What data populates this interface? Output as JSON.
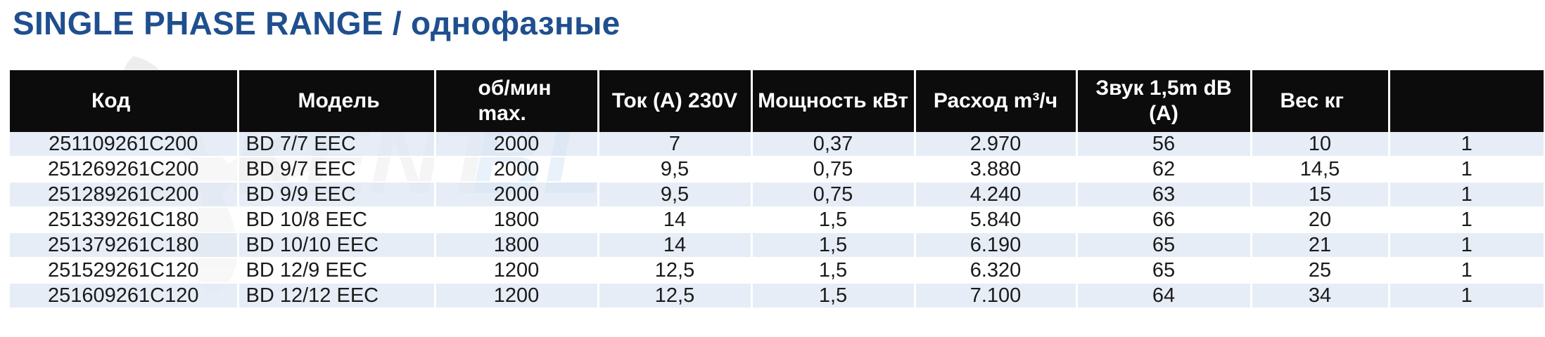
{
  "title": "SINGLE PHASE RANGE / однофазные",
  "watermark_text": "KENTBL",
  "colors": {
    "title": "#1f4f8e",
    "header_bg": "#0c0c0c",
    "row_stripe": "#e2eaf4",
    "watermark_blue": "#9ec3ea",
    "watermark_gray": "#c9c9c9"
  },
  "columns": [
    "Код",
    "Модель",
    "об/мин max.",
    "Ток (A) 230V",
    "Мощность кВт",
    "Расход m³/ч",
    "Звук 1,5m dB (A)",
    "Вес кг",
    ""
  ],
  "rows": [
    [
      "251109261C200",
      "BD 7/7 EEC",
      "2000",
      "7",
      "0,37",
      "2.970",
      "56",
      "10",
      "1"
    ],
    [
      "251269261C200",
      "BD 9/7 EEC",
      "2000",
      "9,5",
      "0,75",
      "3.880",
      "62",
      "14,5",
      "1"
    ],
    [
      "251289261C200",
      "BD 9/9 EEC",
      "2000",
      "9,5",
      "0,75",
      "4.240",
      "63",
      "15",
      "1"
    ],
    [
      "251339261C180",
      "BD 10/8 EEC",
      "1800",
      "14",
      "1,5",
      "5.840",
      "66",
      "20",
      "1"
    ],
    [
      "251379261C180",
      "BD 10/10 EEC",
      "1800",
      "14",
      "1,5",
      "6.190",
      "65",
      "21",
      "1"
    ],
    [
      "251529261C120",
      "BD 12/9 EEC",
      "1200",
      "12,5",
      "1,5",
      "6.320",
      "65",
      "25",
      "1"
    ],
    [
      "251609261C120",
      "BD 12/12 EEC",
      "1200",
      "12,5",
      "1,5",
      "7.100",
      "64",
      "34",
      "1"
    ]
  ]
}
